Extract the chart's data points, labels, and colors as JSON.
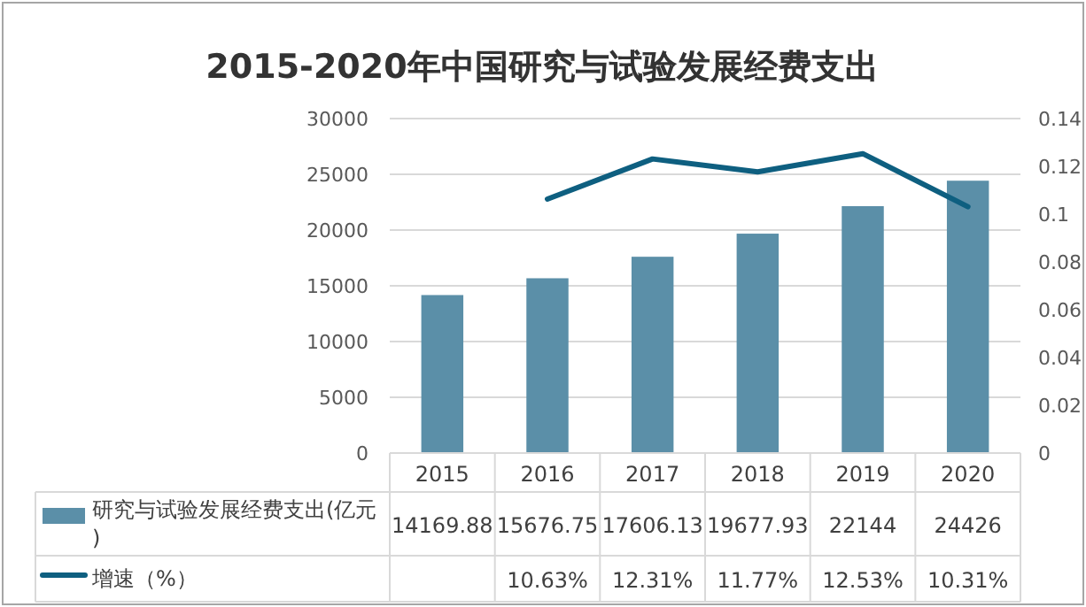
{
  "chart_data": {
    "type": "bar",
    "title": "2015-2020年中国研究与试验发展经费支出",
    "categories": [
      "2015",
      "2016",
      "2017",
      "2018",
      "2019",
      "2020"
    ],
    "series": [
      {
        "name": "研究与试验发展经费支出(亿元)",
        "color": "#5b8fa8",
        "values": [
          14169.88,
          15676.75,
          17606.13,
          19677.93,
          22144,
          24426
        ],
        "value_labels": [
          "14169.88",
          "15676.75",
          "17606.13",
          "19677.93",
          "22144",
          "24426"
        ]
      },
      {
        "name": "增速（%）",
        "type": "line",
        "axis": "y2",
        "color": "#0e5f80",
        "values": [
          null,
          0.1063,
          0.1231,
          0.1177,
          0.1253,
          0.1031
        ],
        "value_labels": [
          null,
          "10.63%",
          "12.31%",
          "11.77%",
          "12.53%",
          "10.31%"
        ]
      }
    ],
    "ylim": [
      0,
      30000
    ],
    "yticks": [
      0,
      5000,
      10000,
      15000,
      20000,
      25000,
      30000
    ],
    "y2lim": [
      0,
      0.14
    ],
    "y2ticks": [
      0,
      0.02,
      0.04,
      0.06,
      0.08,
      0.1,
      0.12,
      0.14
    ],
    "grid": "y",
    "legend": "bottom"
  }
}
